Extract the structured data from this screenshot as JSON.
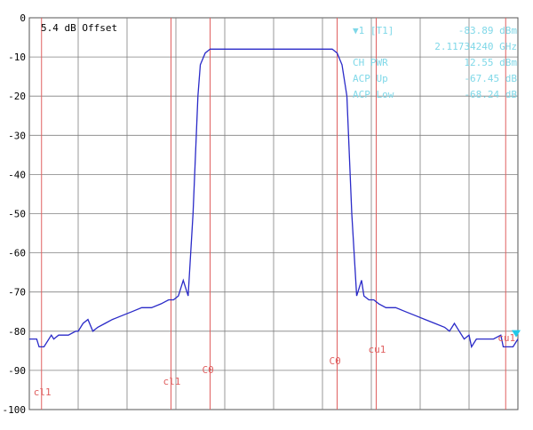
{
  "chart_data": {
    "type": "line",
    "title": "",
    "xlabel": "",
    "ylabel": "",
    "ylim": [
      -100,
      0
    ],
    "yticks": [
      0,
      -10,
      -20,
      -30,
      -40,
      -50,
      -60,
      -70,
      -80,
      -90,
      -100
    ],
    "grid": true,
    "annotation": "5.4 dB Offset",
    "colors": {
      "trace": "#2a2ac8",
      "channel_lines": "#e06060",
      "grid": "#808080",
      "readout": "#7fd8e8",
      "marker": "#22c8e8"
    },
    "marker_readout": [
      {
        "label": "▼1 [T1]",
        "value": "-83.89 dBm"
      },
      {
        "label": "",
        "value": "2.11734240 GHz"
      },
      {
        "label": "CH PWR",
        "value": "12.55 dBm"
      },
      {
        "label": "ACP Up",
        "value": "-67.45 dB"
      },
      {
        "label": "ACP Low",
        "value": "-68.24 dB"
      }
    ],
    "channel_markers": [
      {
        "x": 0.25,
        "label": "cl1"
      },
      {
        "x": 2.9,
        "label": "cl1"
      },
      {
        "x": 3.7,
        "label": "C0"
      },
      {
        "x": 6.3,
        "label": "C0"
      },
      {
        "x": 7.1,
        "label": "cu1"
      },
      {
        "x": 9.75,
        "label": "cu1"
      }
    ],
    "xlim": [
      0,
      10
    ],
    "trace": {
      "x": [
        0,
        0.15,
        0.2,
        0.3,
        0.45,
        0.5,
        0.6,
        0.75,
        0.8,
        0.95,
        1.0,
        1.1,
        1.2,
        1.3,
        1.4,
        1.55,
        1.7,
        1.9,
        2.1,
        2.3,
        2.5,
        2.7,
        2.85,
        2.95,
        3.05,
        3.15,
        3.25,
        3.35,
        3.45,
        3.5,
        3.6,
        3.7,
        3.8,
        4.0,
        4.5,
        5.0,
        5.5,
        6.0,
        6.2,
        6.3,
        6.4,
        6.5,
        6.6,
        6.7,
        6.8,
        6.85,
        6.95,
        7.05,
        7.15,
        7.3,
        7.5,
        7.7,
        7.9,
        8.1,
        8.3,
        8.5,
        8.6,
        8.7,
        8.8,
        8.9,
        9.0,
        9.05,
        9.15,
        9.3,
        9.5,
        9.65,
        9.7,
        9.9,
        10.0
      ],
      "y": [
        -82,
        -82,
        -84,
        -84,
        -81,
        -82,
        -81,
        -81,
        -81,
        -80,
        -80,
        -78,
        -77,
        -80,
        -79,
        -78,
        -77,
        -76,
        -75,
        -74,
        -74,
        -73,
        -72,
        -72,
        -71,
        -67,
        -71,
        -50,
        -20,
        -12,
        -9,
        -8,
        -8,
        -8,
        -8,
        -8,
        -8,
        -8,
        -8,
        -9,
        -12,
        -20,
        -50,
        -71,
        -67,
        -71,
        -72,
        -72,
        -73,
        -74,
        -74,
        -75,
        -76,
        -77,
        -78,
        -79,
        -80,
        -78,
        -80,
        -82,
        -81,
        -84,
        -82,
        -82,
        -82,
        -81,
        -84,
        -84,
        -82
      ]
    }
  }
}
